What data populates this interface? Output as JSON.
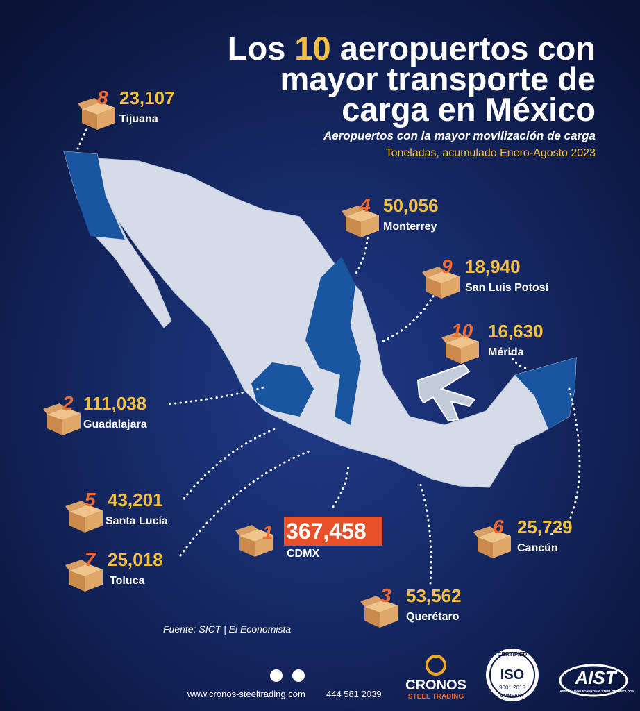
{
  "header": {
    "title": {
      "lead": "Los ",
      "highlight": "10",
      "rest": " aeropuertos con",
      "line2": "mayor transporte de",
      "line3": "carga en México"
    },
    "subtitle": "Aeropuertos con la mayor movilización de carga",
    "note": "Toneladas, acumulado Enero-Agosto 2023"
  },
  "airports": [
    {
      "rank": "1",
      "value": "367,458",
      "city": "CDMX"
    },
    {
      "rank": "2",
      "value": "111,038",
      "city": "Guadalajara"
    },
    {
      "rank": "3",
      "value": "53,562",
      "city": "Querétaro"
    },
    {
      "rank": "4",
      "value": "50,056",
      "city": "Monterrey"
    },
    {
      "rank": "5",
      "value": "43,201",
      "city": "Santa Lucía"
    },
    {
      "rank": "6",
      "value": "25,729",
      "city": "Cancún"
    },
    {
      "rank": "7",
      "value": "25,018",
      "city": "Toluca"
    },
    {
      "rank": "8",
      "value": "23,107",
      "city": "Tijuana"
    },
    {
      "rank": "9",
      "value": "18,940",
      "city": "San Luis Potosí"
    },
    {
      "rank": "10",
      "value": "16,630",
      "city": "Mérida"
    }
  ],
  "source": "Fuente: SICT | El Economista",
  "footer": {
    "website": "www.cronos-steeltrading.com",
    "phone": "444 581 2039",
    "brand": "CRONOS",
    "brand_sub": "STEEL TRADING",
    "iso_top": "CERTIFIED",
    "iso": "ISO",
    "iso_code": "9001:2015",
    "iso_bottom": "COMPANY",
    "aist": "AIST",
    "aist_sub": "ASSOCIATION FOR IRON & STEEL TECHNOLOGY"
  }
}
